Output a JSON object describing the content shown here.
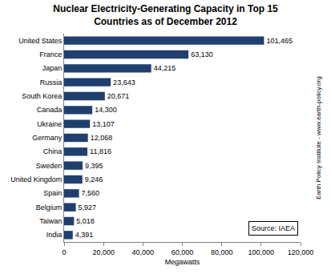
{
  "chart_data": {
    "type": "bar",
    "orientation": "horizontal",
    "title": "Nuclear Electricity-Generating Capacity in Top 15\nCountries as of December 2012",
    "x_label": "Megawatts",
    "categories": [
      "United States",
      "France",
      "Japan",
      "Russia",
      "South Korea",
      "Canada",
      "Ukraine",
      "Germany",
      "China",
      "Sweden",
      "United Kingdom",
      "Spain",
      "Belgium",
      "Taiwan",
      "India"
    ],
    "values": [
      101465,
      63130,
      44215,
      23643,
      20671,
      14300,
      13107,
      12068,
      11816,
      9395,
      9246,
      7560,
      5927,
      5018,
      4391
    ],
    "value_labels": [
      "101,465",
      "63,130",
      "44,215",
      "23,643",
      "20,671",
      "14,300",
      "13,107",
      "12,068",
      "11,816",
      "9,395",
      "9,246",
      "7,560",
      "5,927",
      "5,018",
      "4,391"
    ],
    "data_labels": true,
    "color": "#1f3f6f",
    "xlim": [
      0,
      120000
    ],
    "xticks": [
      0,
      {
        "value": 20000,
        "label": "20,000"
      },
      {
        "value": 40000,
        "label": "40,000"
      },
      {
        "value": 60000,
        "label": "60,000"
      },
      {
        "value": 80000,
        "label": "80,000"
      },
      {
        "value": 100000,
        "label": "100,000"
      },
      {
        "value": 120000,
        "label": "120,000"
      }
    ],
    "grid": false,
    "annotations": [
      "Source: IAEA",
      "Earth Policy Institute - www.earth-policy.org"
    ]
  }
}
